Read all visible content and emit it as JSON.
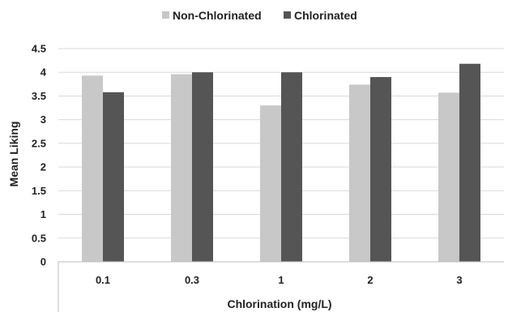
{
  "chart_data": {
    "type": "bar",
    "categories": [
      "0.1",
      "0.3",
      "1",
      "2",
      "3"
    ],
    "series": [
      {
        "name": "Non-Chlorinated",
        "color": "#c8c8c8",
        "values": [
          3.93,
          3.96,
          3.3,
          3.74,
          3.57
        ]
      },
      {
        "name": "Chlorinated",
        "color": "#555555",
        "values": [
          3.58,
          4.0,
          4.0,
          3.9,
          4.18
        ]
      }
    ],
    "title": "",
    "xlabel": "Chlorination (mg/L)",
    "ylabel": "Mean Liking",
    "ylim": [
      0,
      4.5
    ],
    "yticks": [
      "0",
      "0.5",
      "1",
      "1.5",
      "2",
      "2.5",
      "3",
      "3.5",
      "4",
      "4.5"
    ],
    "grid": true,
    "legend_position": "top-center"
  }
}
